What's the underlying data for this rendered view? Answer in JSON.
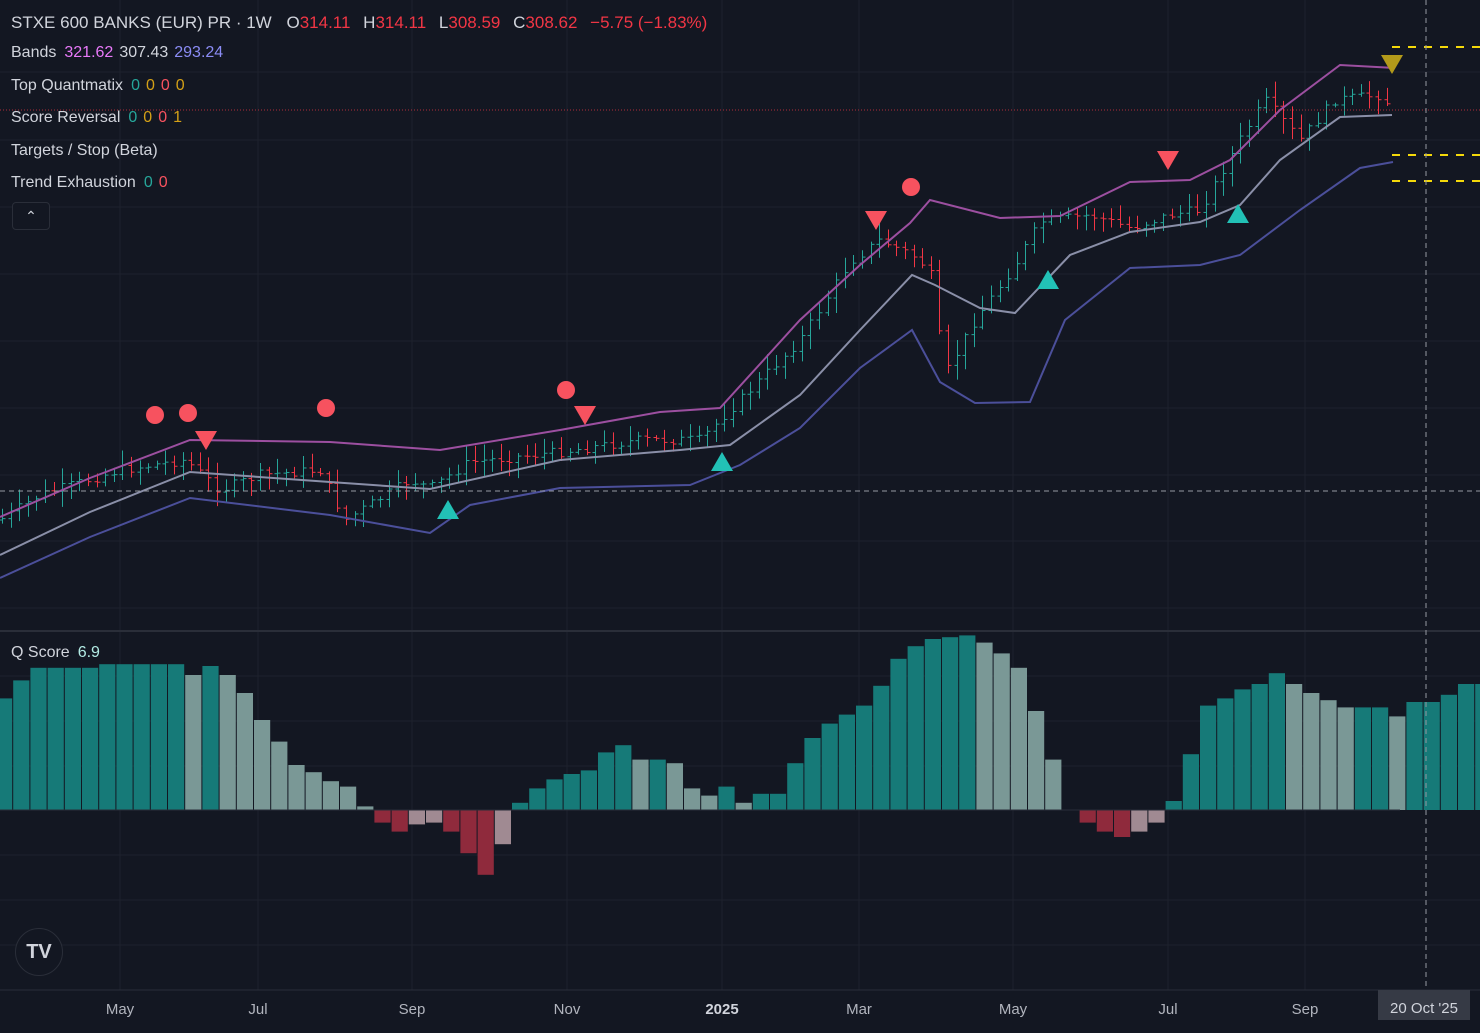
{
  "header": {
    "symbol": "STXE 600 BANKS (EUR) PR · 1W",
    "open_label": "O",
    "open": "314.11",
    "high_label": "H",
    "high": "314.11",
    "low_label": "L",
    "low": "308.59",
    "close_label": "C",
    "close": "308.62",
    "change": "−5.75 (−1.83%)"
  },
  "indicators": [
    {
      "name": "Bands",
      "values": [
        {
          "text": "321.62",
          "color": "#e879f9"
        },
        {
          "text": "307.43",
          "color": "#d1d4dc"
        },
        {
          "text": "293.24",
          "color": "#8b8cf5"
        }
      ]
    },
    {
      "name": "Top Quantmatix",
      "values": [
        {
          "text": "0",
          "color": "#26a69a"
        },
        {
          "text": "0",
          "color": "#d4a017"
        },
        {
          "text": "0",
          "color": "#f7525f"
        },
        {
          "text": "0",
          "color": "#d4a017"
        }
      ]
    },
    {
      "name": "Score Reversal",
      "values": [
        {
          "text": "0",
          "color": "#26a69a"
        },
        {
          "text": "0",
          "color": "#d4a017"
        },
        {
          "text": "0",
          "color": "#f7525f"
        },
        {
          "text": "1",
          "color": "#d4a017"
        }
      ]
    },
    {
      "name": "Targets / Stop (Beta)",
      "values": []
    },
    {
      "name": "Trend Exhaustion",
      "values": [
        {
          "text": "0",
          "color": "#26a69a"
        },
        {
          "text": "0",
          "color": "#f7525f"
        }
      ]
    }
  ],
  "collapse_icon": "chevron-up-icon",
  "qscore": {
    "name": "Q Score",
    "value": "6.9"
  },
  "x_axis": [
    "May",
    "Jul",
    "Sep",
    "Nov",
    "2025",
    "Mar",
    "May",
    "Jul",
    "Sep"
  ],
  "crosshair_date": "20 Oct '25",
  "logo": "tradingview-logo",
  "colors": {
    "background": "#131722",
    "up": "#26a69a",
    "down": "#f23645",
    "band_upper": "#9c4fa0",
    "band_mid": "#8a8fa8",
    "band_lower": "#4b4f9a",
    "qscore_strong": "#167a78",
    "qscore_weak": "#7a9896",
    "qscore_neg_strong": "#8f2a3c",
    "qscore_neg_weak": "#a08a92"
  },
  "chart_data": {
    "type": "candlestick",
    "timeframe": "1W",
    "ohlc_last": {
      "open": 314.11,
      "high": 314.11,
      "low": 308.59,
      "close": 308.62
    },
    "bands_last": {
      "upper": 321.62,
      "middle": 307.43,
      "lower": 293.24
    },
    "qscore_last": 6.9
  }
}
